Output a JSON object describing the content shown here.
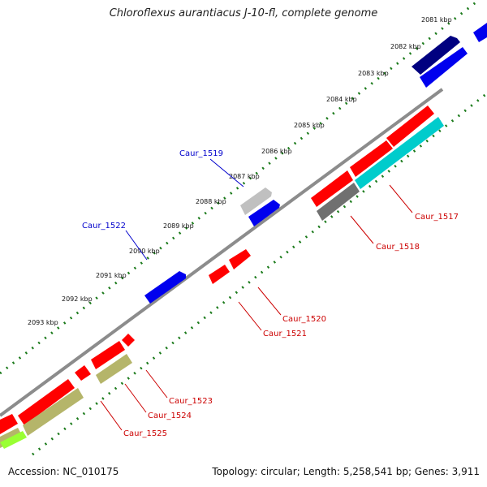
{
  "title": "Chloroflexus aurantiacus J-10-fl, complete genome",
  "footer": {
    "accession_label": "Accession:",
    "accession": "NC_010175",
    "topology_label": "Topology:",
    "topology": "circular",
    "length_label": "Length:",
    "length": "5,258,541 bp",
    "genes_label": "Genes:",
    "genes": "3,911"
  },
  "colors": {
    "backbone": "#8c8c8c",
    "ticks": "#1a7a1a",
    "label_blue": "#0000cc",
    "label_red": "#cc0000",
    "gene_red": "#ff0000",
    "gene_blue": "#0000ee",
    "gene_navy": "#000080",
    "gene_cyan": "#00cccc",
    "gene_khaki": "#b5b56a",
    "gene_grey": "#c0c0c0",
    "gene_darkgrey": "#707070",
    "gene_lime": "#99ff33"
  },
  "kbp_labels": [
    "2081 kbp",
    "2082 kbp",
    "2083 kbp",
    "2084 kbp",
    "2085 kbp",
    "2086 kbp",
    "2087 kbp",
    "2088 kbp",
    "2089 kbp",
    "2090 kbp",
    "2091 kbp",
    "2092 kbp",
    "2093 kbp"
  ],
  "gene_labels": {
    "caur_1519": "Caur_1519",
    "caur_1522": "Caur_1522",
    "caur_1517": "Caur_1517",
    "caur_1518": "Caur_1518",
    "caur_1520": "Caur_1520",
    "caur_1521": "Caur_1521",
    "caur_1523": "Caur_1523",
    "caur_1524": "Caur_1524",
    "caur_1525": "Caur_1525"
  }
}
